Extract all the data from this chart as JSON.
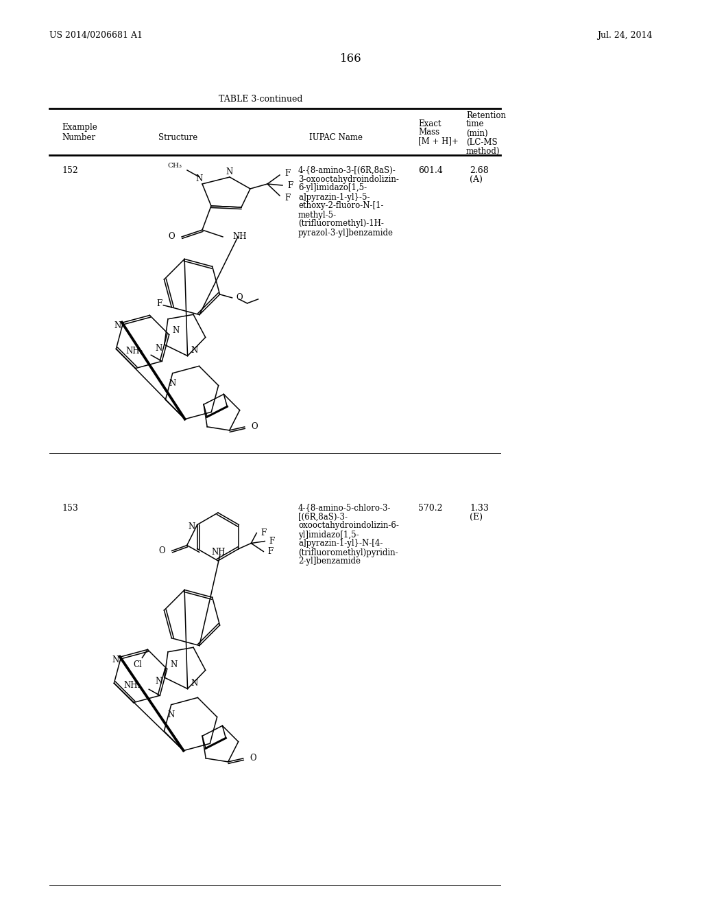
{
  "background_color": "#ffffff",
  "page_number": "166",
  "header_left": "US 2014/0206681 A1",
  "header_right": "Jul. 24, 2014",
  "table_title": "TABLE 3-continued",
  "rows": [
    {
      "example_number": "152",
      "iupac_name": "4-{8-amino-3-[(6R,8aS)-\n3-oxooctahydroindolizin-\n6-yl]imidazo[1,5-\na]pyrazin-1-yl}-5-\nethoxy-2-fluoro-N-[1-\nmethyl-5-\n(trifluoromethyl)-1H-\npyrazol-3-yl]benzamide",
      "exact_mass": "601.4",
      "retention_time": "2.68\n(A)"
    },
    {
      "example_number": "153",
      "iupac_name": "4-{8-amino-5-chloro-3-\n[(6R,8aS)-3-\noxooctahydroindolizin-6-\nyl]imidazo[1,5-\na]pyrazin-1-yl}-N-[4-\n(trifluoromethyl)pyridin-\n2-yl]benzamide",
      "exact_mass": "570.2",
      "retention_time": "1.33\n(E)"
    }
  ]
}
